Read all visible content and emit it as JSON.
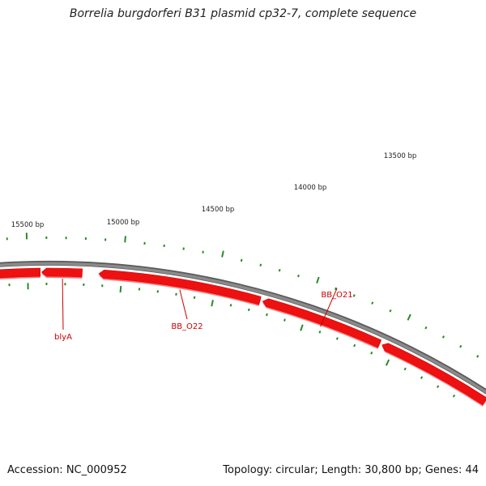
{
  "title": "Borrelia burgdorferi B31 plasmid cp32-7, complete sequence",
  "accession": "Accession: NC_000952",
  "summary": "Topology: circular; Length: 30,800 bp; Genes: 44",
  "colors": {
    "backbone": "#8a8a8a",
    "gene_fill": "#ee1111",
    "gene_shadow": "#ff7070",
    "tick": "#2a8a2a",
    "gene_label": "#cc0000",
    "tick_label": "#222222"
  },
  "ruler_labels": [
    {
      "name": "tick-label-15500",
      "text": "15500 bp"
    },
    {
      "name": "tick-label-15000",
      "text": "15000 bp"
    },
    {
      "name": "tick-label-14500",
      "text": "14500 bp"
    },
    {
      "name": "tick-label-14000",
      "text": "14000 bp"
    },
    {
      "name": "tick-label-13500",
      "text": "13500 bp"
    }
  ],
  "genes": [
    {
      "name": "gene-label-blyA",
      "label": "blyA"
    },
    {
      "name": "gene-label-BB_O22",
      "label": "BB_O22"
    },
    {
      "name": "gene-label-BB_O21",
      "label": "BB_O21"
    }
  ]
}
